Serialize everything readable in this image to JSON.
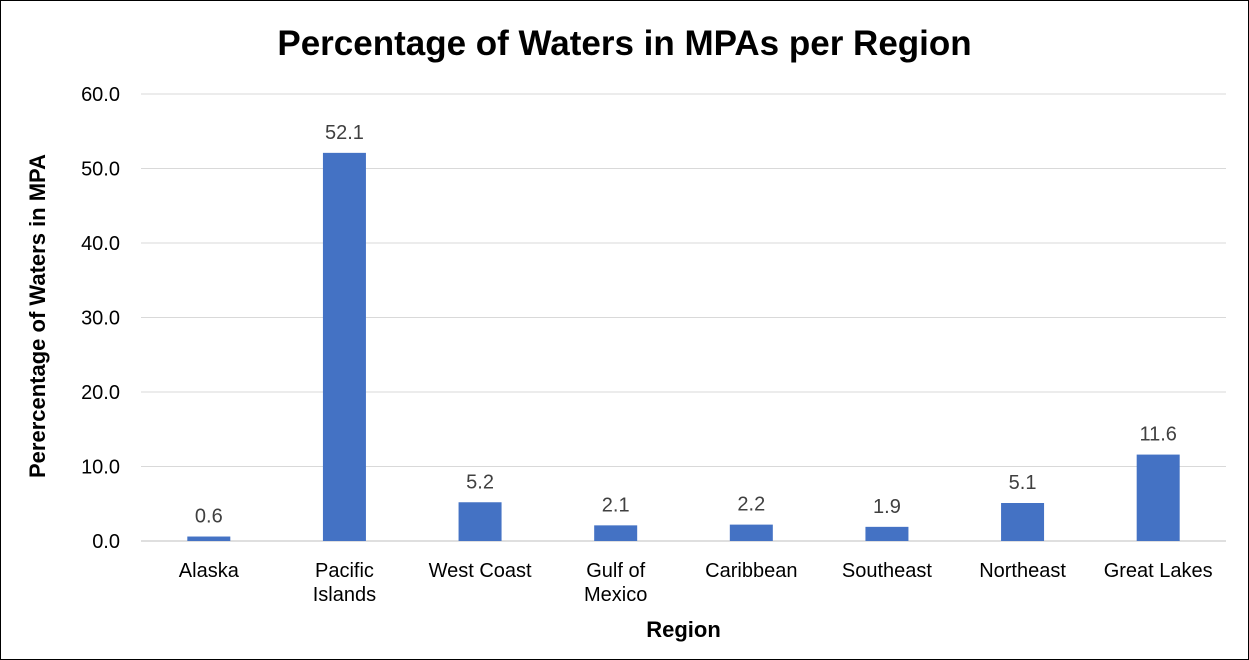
{
  "chart_data": {
    "type": "bar",
    "title": "Percentage of Waters in MPAs per Region",
    "xlabel": "Region",
    "ylabel": "Perercentage of Waters in MPA",
    "categories": [
      "Alaska",
      "Pacific Islands",
      "West Coast",
      "Gulf of Mexico",
      "Caribbean",
      "Southeast",
      "Northeast",
      "Great Lakes"
    ],
    "category_lines": [
      [
        "Alaska"
      ],
      [
        "Pacific",
        "Islands"
      ],
      [
        "West Coast"
      ],
      [
        "Gulf of",
        "Mexico"
      ],
      [
        "Caribbean"
      ],
      [
        "Southeast"
      ],
      [
        "Northeast"
      ],
      [
        "Great Lakes"
      ]
    ],
    "values": [
      0.6,
      52.1,
      5.2,
      2.1,
      2.2,
      1.9,
      5.1,
      11.6
    ],
    "data_labels": [
      "0.6",
      "52.1",
      "5.2",
      "2.1",
      "2.2",
      "1.9",
      "5.1",
      "11.6"
    ],
    "ylim": [
      0,
      60
    ],
    "yticks": [
      0,
      10,
      20,
      30,
      40,
      50,
      60
    ],
    "ytick_labels": [
      "0.0",
      "10.0",
      "20.0",
      "30.0",
      "40.0",
      "50.0",
      "60.0"
    ],
    "grid": true,
    "legend": "none",
    "colors": {
      "bar": "#4472C4",
      "grid": "#D9D9D9",
      "axis": "#BFBFBF",
      "data_label": "#404040"
    }
  }
}
